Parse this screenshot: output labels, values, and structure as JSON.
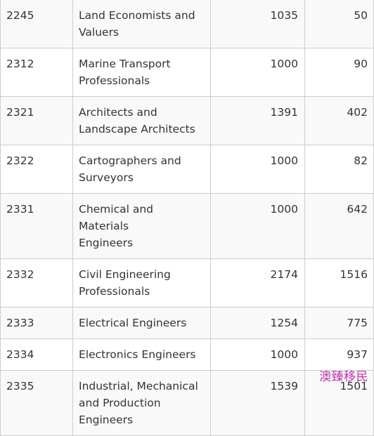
{
  "rows": [
    {
      "code": "2245",
      "occupation": [
        "Land Economists and",
        "Valuers"
      ],
      "col3": "1035",
      "col4": "50"
    },
    {
      "code": "2312",
      "occupation": [
        "Marine Transport",
        "Professionals"
      ],
      "col3": "1000",
      "col4": "90"
    },
    {
      "code": "2321",
      "occupation": [
        "Architects and",
        "Landscape Architects"
      ],
      "col3": "1391",
      "col4": "402"
    },
    {
      "code": "2322",
      "occupation": [
        "Cartographers and",
        "Surveyors"
      ],
      "col3": "1000",
      "col4": "82"
    },
    {
      "code": "2331",
      "occupation": [
        "Chemical and Materials",
        "Engineers"
      ],
      "col3": "1000",
      "col4": "642"
    },
    {
      "code": "2332",
      "occupation": [
        "Civil Engineering",
        "Professionals"
      ],
      "col3": "2174",
      "col4": "1516"
    },
    {
      "code": "2333",
      "occupation": [
        "Electrical Engineers"
      ],
      "col3": "1254",
      "col4": "775"
    },
    {
      "code": "2334",
      "occupation": [
        "Electronics Engineers"
      ],
      "col3": "1000",
      "col4": "937"
    },
    {
      "code": "2335",
      "occupation": [
        "Industrial, Mechanical",
        "and Production",
        "Engineers"
      ],
      "col3": "1539",
      "col4": "1501"
    }
  ],
  "watermark": "澳臻移民"
}
